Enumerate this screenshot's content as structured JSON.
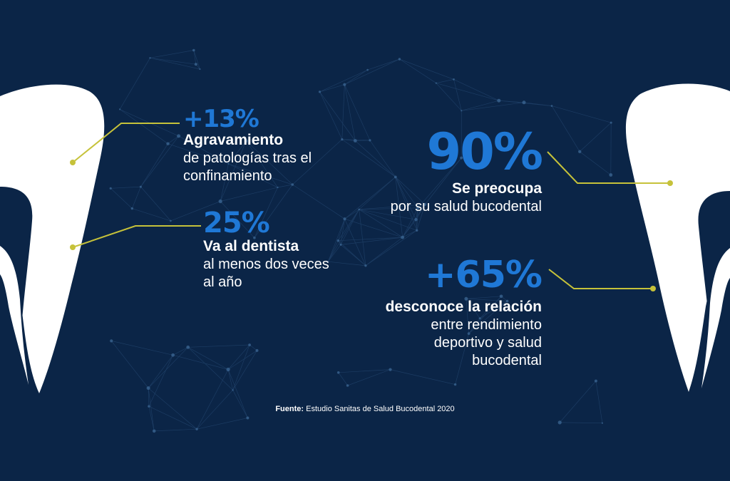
{
  "colors": {
    "background": "#0b2547",
    "accent_blue": "#1f78d6",
    "connector_yellow": "#c6c23a",
    "tooth_white": "#ffffff"
  },
  "stats": [
    {
      "value": "+13%",
      "title": "Agravamiento",
      "detail": [
        "de patologías tras el",
        "confinamiento"
      ]
    },
    {
      "value": "25%",
      "title": "Va al dentista",
      "detail": [
        "al menos dos veces",
        "al año"
      ]
    },
    {
      "value": "90%",
      "title": "Se preocupa",
      "detail": [
        "por su salud bucodental"
      ]
    },
    {
      "value": "+65%",
      "title": "desconoce la relación",
      "detail": [
        "entre rendimiento",
        "deportivo y salud",
        "bucodental"
      ]
    }
  ],
  "source": {
    "label": "Fuente:",
    "text": " Estudio Sanitas de Salud Bucodental 2020"
  },
  "icons": [
    "tooth-left-icon",
    "tooth-right-icon"
  ]
}
